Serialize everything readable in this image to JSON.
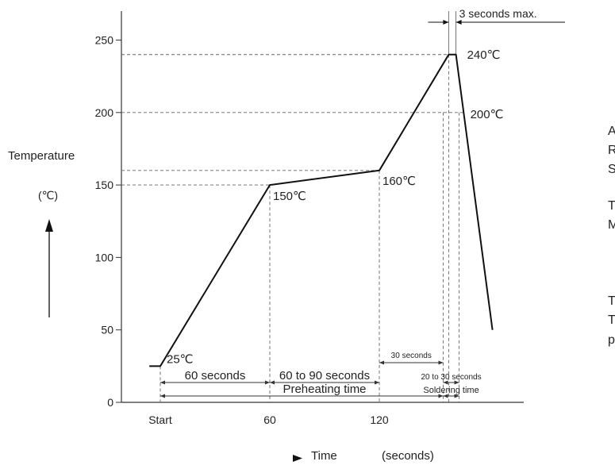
{
  "chart_data": {
    "type": "line",
    "xlabel": "Time",
    "x_unit": "(seconds)",
    "ylabel": "Temperature",
    "y_unit": "(℃)",
    "x_ticks": [
      {
        "value": 0,
        "label": "Start"
      },
      {
        "value": 60,
        "label": "60"
      },
      {
        "value": 120,
        "label": "120"
      }
    ],
    "y_ticks": [
      0,
      50,
      100,
      150,
      200,
      250
    ],
    "xlim": [
      -15,
      185
    ],
    "ylim": [
      0,
      265
    ],
    "grid": false,
    "series": [
      {
        "points": [
          {
            "x": -6,
            "y": 25
          },
          {
            "x": 0,
            "y": 25
          },
          {
            "x": 60,
            "y": 150
          },
          {
            "x": 120,
            "y": 160
          },
          {
            "x": 158,
            "y": 240
          },
          {
            "x": 162,
            "y": 240
          },
          {
            "x": 182,
            "y": 50
          }
        ]
      }
    ],
    "point_labels": [
      "25℃",
      "150℃",
      "160℃",
      "240℃",
      "200℃"
    ],
    "annotations": {
      "peak_duration": "3 seconds max.",
      "first_interval": "60 seconds",
      "second_interval": "60 to 90 seconds",
      "preheating": "Preheating time",
      "thirty_seconds": "30 seconds",
      "soldering_interval": "20 to 30 seconds",
      "soldering": "Soldering time"
    }
  },
  "side_text": [
    "A",
    "R",
    "S",
    "T",
    "M",
    "T",
    "T",
    "p"
  ]
}
